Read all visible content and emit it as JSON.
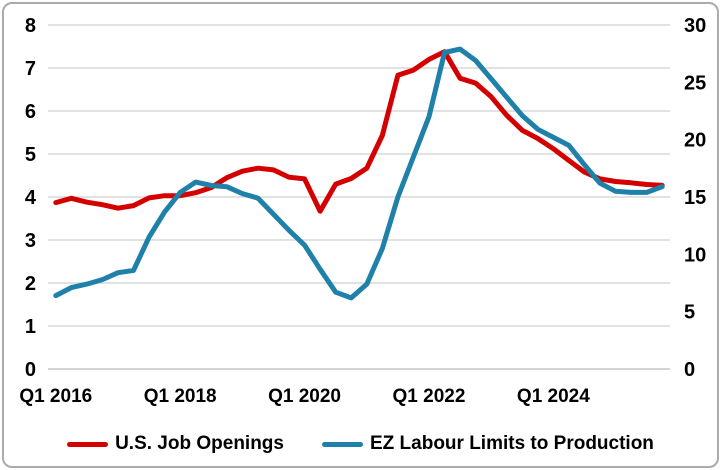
{
  "chart_data": {
    "type": "line",
    "grid": "horizontal",
    "legend_position": "bottom",
    "x": [
      "2016Q1",
      "2016Q2",
      "2016Q3",
      "2016Q4",
      "2017Q1",
      "2017Q2",
      "2017Q3",
      "2017Q4",
      "2018Q1",
      "2018Q2",
      "2018Q3",
      "2018Q4",
      "2019Q1",
      "2019Q2",
      "2019Q3",
      "2019Q4",
      "2020Q1",
      "2020Q2",
      "2020Q3",
      "2020Q4",
      "2021Q1",
      "2021Q2",
      "2021Q3",
      "2021Q4",
      "2022Q1",
      "2022Q2",
      "2022Q3",
      "2022Q4",
      "2023Q1",
      "2023Q2",
      "2023Q3",
      "2023Q4",
      "2024Q1",
      "2024Q2",
      "2024Q3",
      "2024Q4",
      "2025Q1",
      "2025Q2",
      "2025Q3",
      "2025Q4"
    ],
    "x_tick_labels": [
      {
        "label": "Q1 2016",
        "index": 0
      },
      {
        "label": "Q1 2018",
        "index": 8
      },
      {
        "label": "Q1 2020",
        "index": 16
      },
      {
        "label": "Q1 2022",
        "index": 24
      },
      {
        "label": "Q1 2024",
        "index": 32
      }
    ],
    "series": [
      {
        "name": "U.S. Job Openings",
        "axis": "left",
        "color": "#d40000",
        "values": [
          3.87,
          3.97,
          3.88,
          3.82,
          3.74,
          3.8,
          3.98,
          4.03,
          4.03,
          4.1,
          4.22,
          4.45,
          4.6,
          4.67,
          4.63,
          4.46,
          4.42,
          3.67,
          4.3,
          4.43,
          4.67,
          5.43,
          6.83,
          6.95,
          7.2,
          7.38,
          6.76,
          6.65,
          6.33,
          5.9,
          5.55,
          5.36,
          5.12,
          4.85,
          4.58,
          4.42,
          4.36,
          4.33,
          4.29,
          4.27
        ]
      },
      {
        "name": "EZ Labour Limits to Production",
        "axis": "right",
        "color": "#1f81a9",
        "values": [
          6.4,
          7.1,
          7.4,
          7.8,
          8.4,
          8.6,
          11.5,
          13.7,
          15.4,
          16.3,
          16.0,
          15.9,
          15.3,
          14.9,
          13.5,
          12.1,
          10.8,
          8.7,
          6.7,
          6.2,
          7.4,
          10.5,
          15.0,
          18.5,
          22.0,
          27.6,
          27.9,
          26.9,
          25.3,
          23.7,
          22.1,
          20.9,
          20.2,
          19.5,
          17.8,
          16.2,
          15.5,
          15.4,
          15.4,
          15.9
        ]
      }
    ],
    "axes": {
      "left": {
        "min": 0,
        "max": 8,
        "tick_step": 1,
        "tick_labels": [
          "0",
          "1",
          "2",
          "3",
          "4",
          "5",
          "6",
          "7",
          "8"
        ]
      },
      "right": {
        "min": 0,
        "max": 30,
        "tick_step": 5,
        "tick_labels": [
          "0",
          "5",
          "10",
          "15",
          "20",
          "25",
          "30"
        ]
      }
    },
    "colors": {
      "gridline": "#d9d9d9",
      "axis_line": "#c6c6c6",
      "text": "#000000",
      "frame_border": "#ababab"
    }
  }
}
